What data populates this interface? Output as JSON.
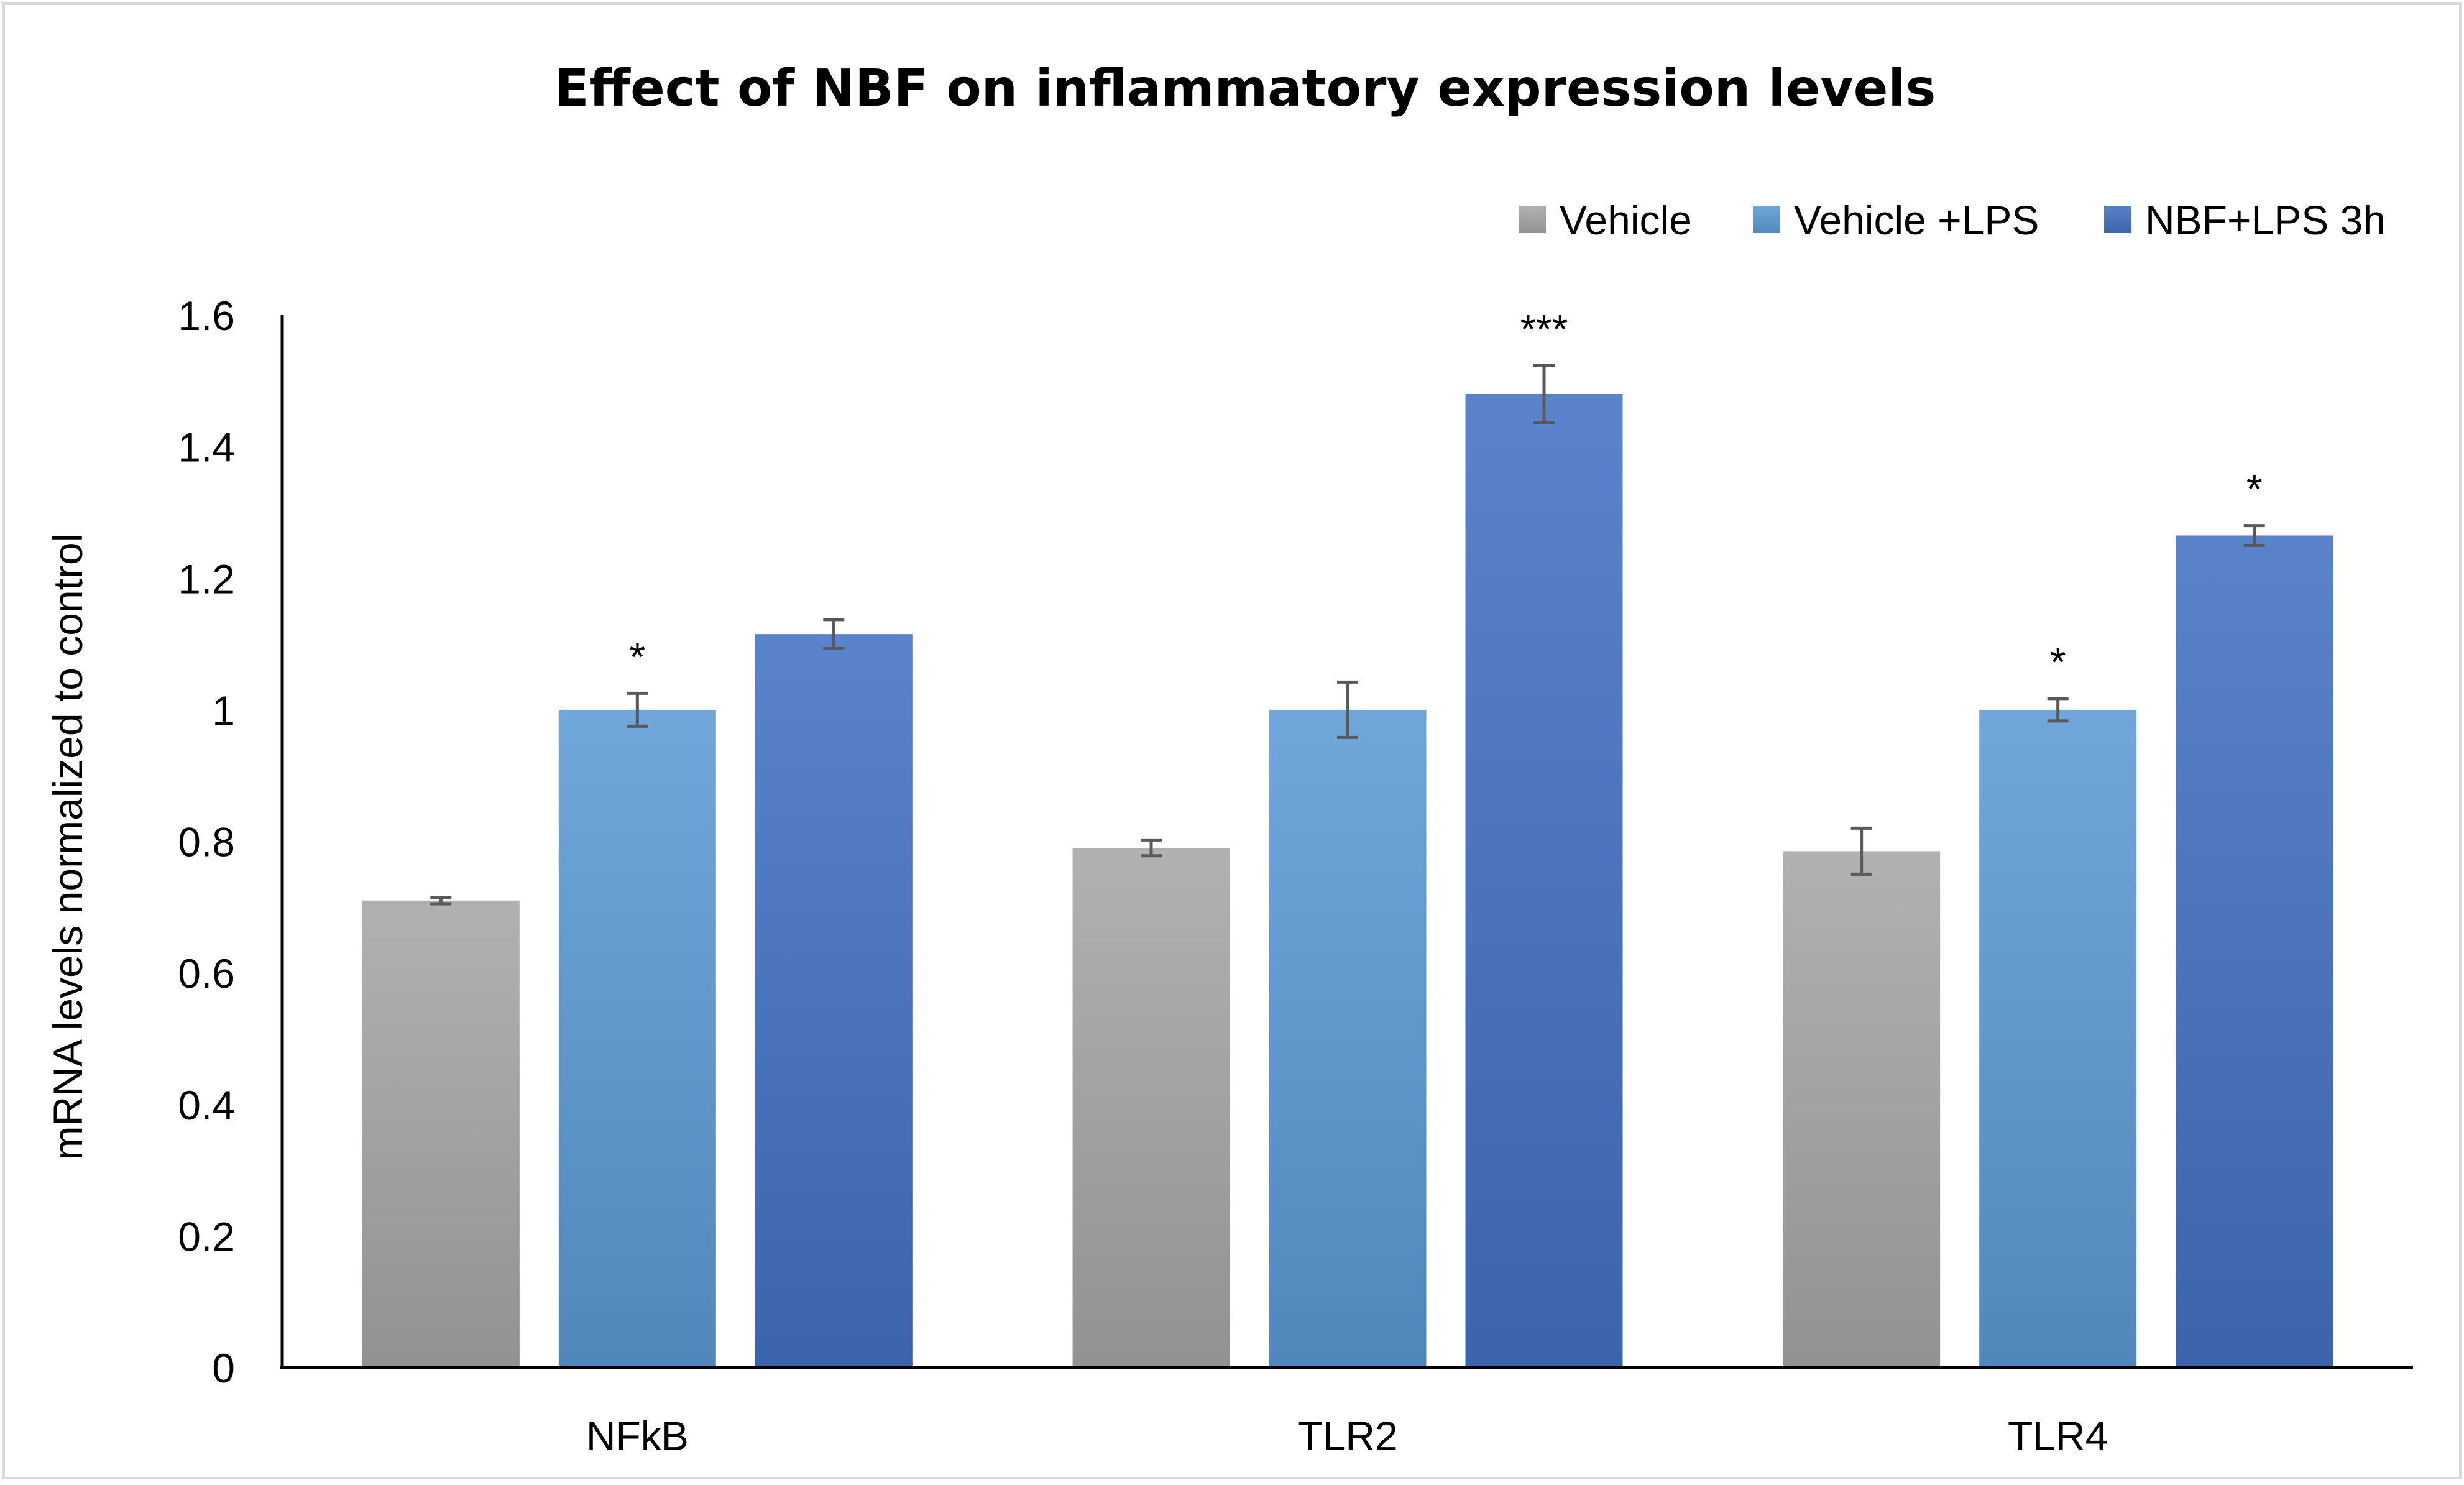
{
  "chart_data": {
    "type": "bar",
    "title": "Effect of NBF on inflammatory expression levels",
    "xlabel": "",
    "ylabel": "mRNA levels normalized to control",
    "ylim": [
      0,
      1.6
    ],
    "yticks": [
      "0",
      "0.2",
      "0.4",
      "0.6",
      "0.8",
      "1",
      "1.2",
      "1.4",
      "1.6"
    ],
    "categories": [
      "NFkB",
      "TLR2",
      "TLR4"
    ],
    "legend_position": "top-right",
    "grid": false,
    "series": [
      {
        "name": "Vehicle",
        "color": "#a6a6a6",
        "values": [
          0.71,
          0.79,
          0.785
        ],
        "errors": [
          0.005,
          0.012,
          0.035
        ],
        "significance": [
          "",
          "",
          ""
        ]
      },
      {
        "name": "Vehicle +LPS",
        "color": "#5b9bd5",
        "values": [
          1.0,
          1.0,
          1.0
        ],
        "errors": [
          0.025,
          0.042,
          0.017
        ],
        "significance": [
          "*",
          "",
          "*"
        ]
      },
      {
        "name": "NBF+LPS 3h",
        "color": "#4472c4",
        "values": [
          1.115,
          1.48,
          1.265
        ],
        "errors": [
          0.022,
          0.043,
          0.015
        ],
        "significance": [
          "",
          "***",
          "*"
        ]
      }
    ]
  }
}
